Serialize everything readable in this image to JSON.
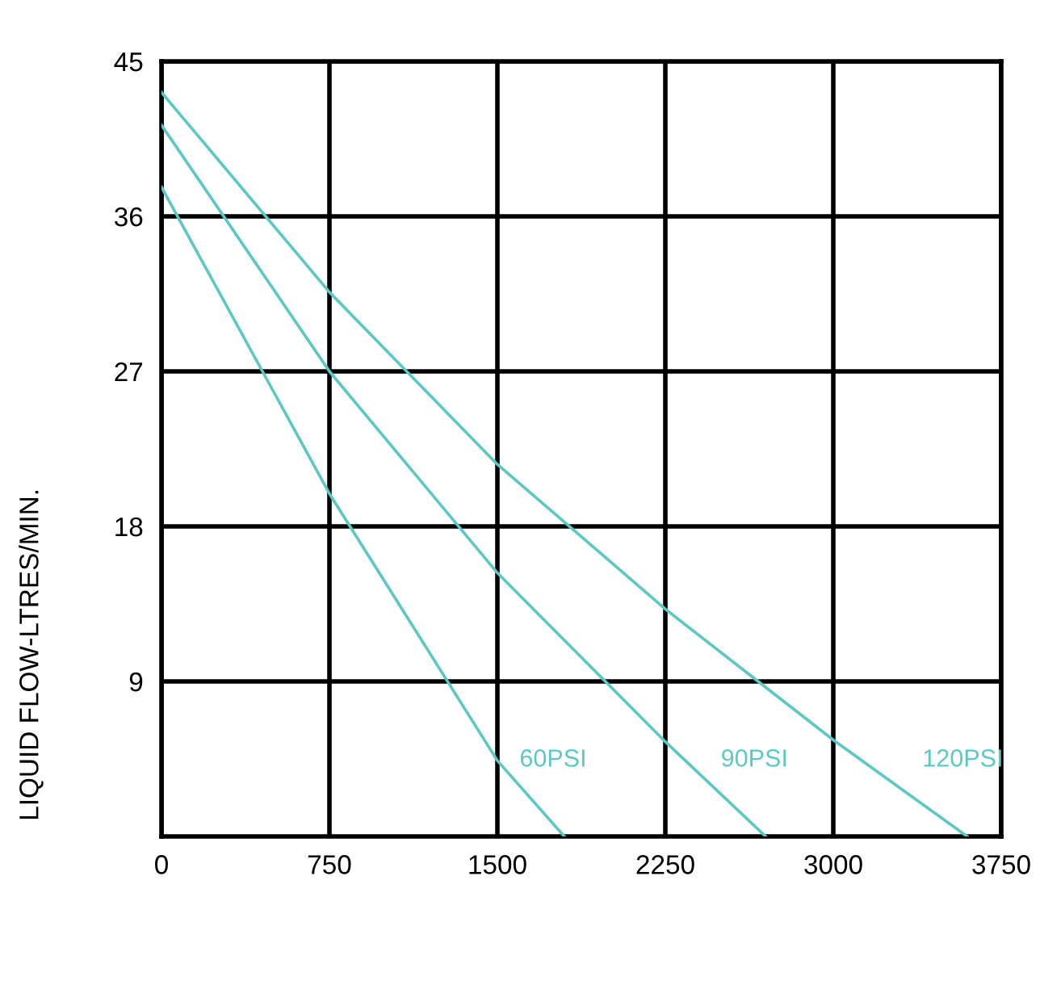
{
  "chart_data": {
    "type": "line",
    "ylabel": "LIQUID FLOW-LTRES/MIN.",
    "xlim": [
      0,
      3750
    ],
    "xticks": [
      0,
      750,
      1500,
      2250,
      3000,
      3750
    ],
    "ylim": [
      0,
      45
    ],
    "yticks": [
      9,
      18,
      27,
      36,
      45
    ],
    "grid": true,
    "marker": "none",
    "line_style": "solid",
    "series": [
      {
        "name": "60PSI",
        "color": "#5bc8c4",
        "x": [
          0,
          451,
          750,
          1500,
          1799
        ],
        "values": [
          37.7,
          27,
          19.9,
          4.4,
          0
        ]
      },
      {
        "name": "90PSI",
        "color": "#5bc8c4",
        "x": [
          0,
          750,
          1500,
          2250,
          2698
        ],
        "values": [
          41.3,
          27,
          15.3,
          5.5,
          0
        ]
      },
      {
        "name": "120PSI",
        "color": "#5bc8c4",
        "x": [
          0,
          750,
          1500,
          2250,
          3000,
          3598
        ],
        "values": [
          43.2,
          31.6,
          21.6,
          13.2,
          5.6,
          0
        ]
      }
    ]
  }
}
